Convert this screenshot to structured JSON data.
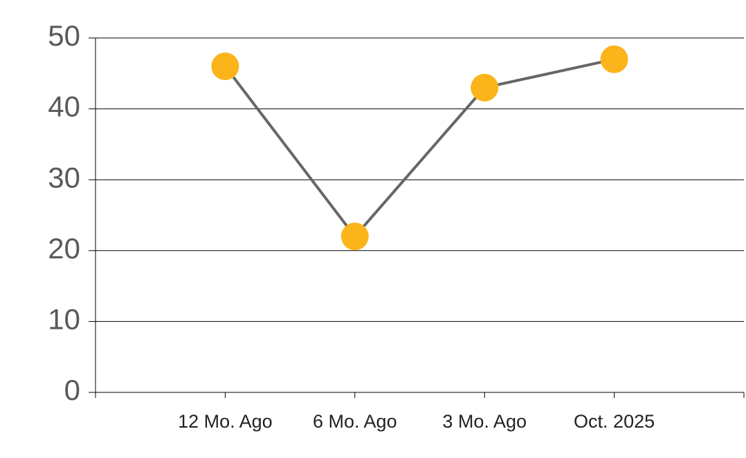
{
  "chart_data": {
    "type": "line",
    "categories": [
      "12 Mo. Ago",
      "6 Mo. Ago",
      "3 Mo. Ago",
      "Oct. 2025"
    ],
    "values": [
      46,
      22,
      43,
      47
    ],
    "color": "#fbb41a",
    "line_color": "#666666",
    "ylim": [
      0,
      50
    ],
    "yticks": [
      0,
      10,
      20,
      30,
      40,
      50
    ],
    "grid": true
  }
}
